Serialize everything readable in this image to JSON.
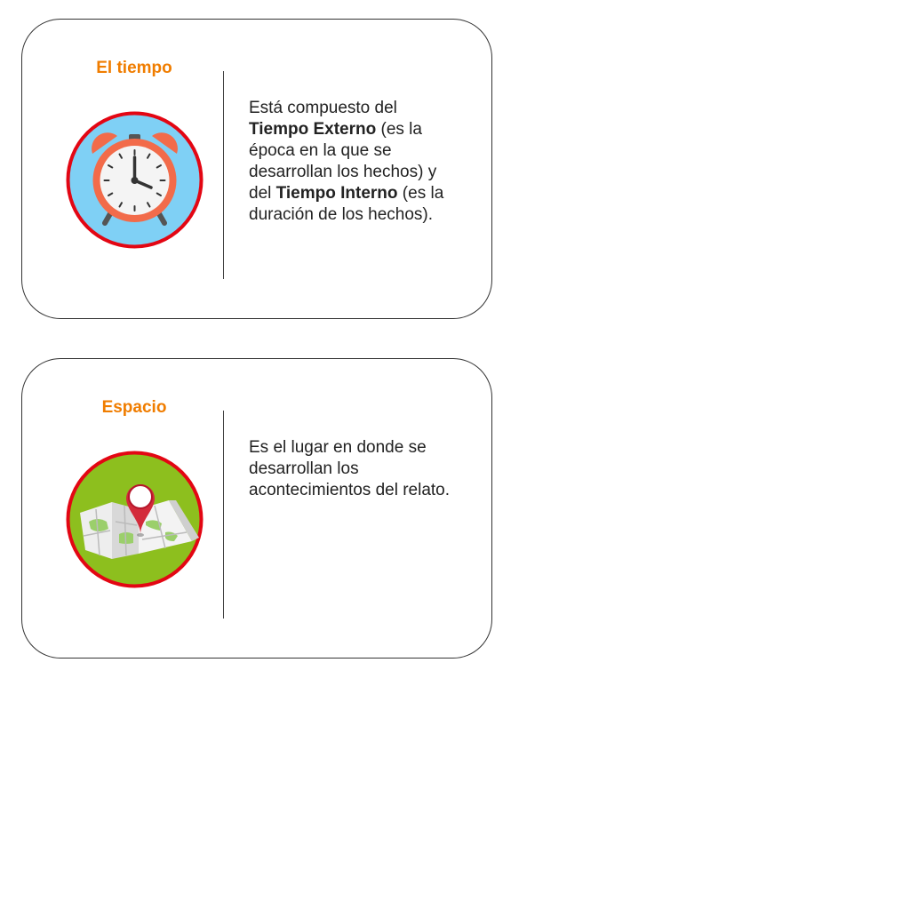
{
  "cards": [
    {
      "title": "El tiempo",
      "icon": "alarm-clock-icon",
      "description": {
        "p1": "Está compuesto del ",
        "b1": "Tiempo Externo",
        "p2": " (es la época en la que se desarrollan los hechos) y del ",
        "b2": "Tiempo Interno",
        "p3": " (es la duración de los hechos)."
      }
    },
    {
      "title": "Espacio",
      "icon": "map-pin-icon",
      "description": {
        "p1": "Es el lugar en donde se desarrollan los acontecimientos del relato."
      }
    }
  ],
  "colors": {
    "title": "#f07d00",
    "ring": "#e30613",
    "clock_bg": "#7fd0f5",
    "map_bg": "#8dbf1e",
    "clock_body": "#f26b4a"
  }
}
